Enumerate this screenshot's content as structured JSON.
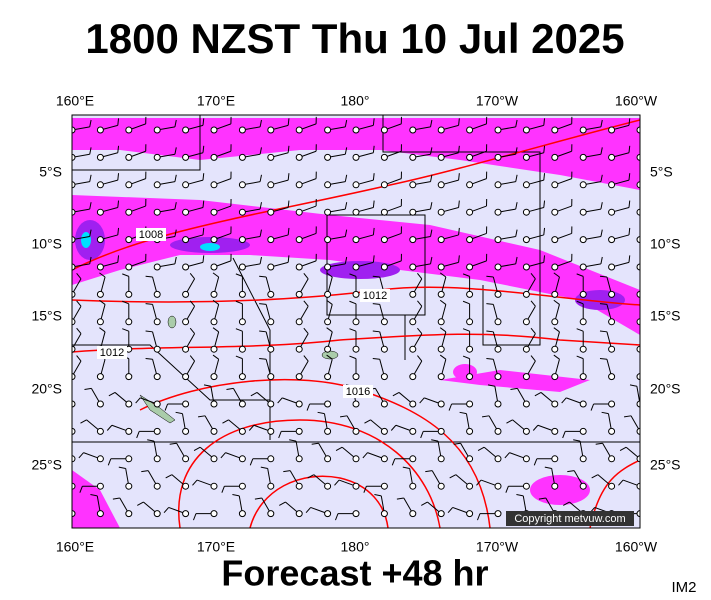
{
  "header": {
    "title": "1800 NZST Thu 10 Jul 2025"
  },
  "map": {
    "top_labels": [
      "160°E",
      "170°E",
      "180°",
      "170°W",
      "160°W"
    ],
    "bottom_labels": [
      "160°E",
      "170°E",
      "180°",
      "170°W",
      "160°W"
    ],
    "left_labels": [
      "5°S",
      "10°S",
      "15°S",
      "20°S",
      "25°S"
    ],
    "right_labels": [
      "5°S",
      "10°S",
      "15°S",
      "20°S",
      "25°S"
    ],
    "isobar_labels": [
      "1008",
      "1012",
      "1012",
      "1016"
    ],
    "copyright": "Copyright metvuw.com"
  },
  "footer": {
    "forecast": "Forecast +48 hr",
    "image_id": "IM2"
  }
}
